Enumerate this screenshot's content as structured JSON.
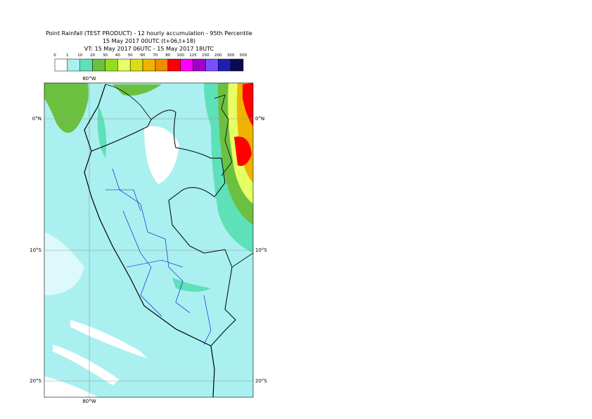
{
  "header": {
    "lines": [
      "Point Rainfall (TEST PRODUCT) - 12 hourly accumulation - 95th Percentile",
      "15 May 2017 00UTC (t+06,t+18)",
      "VT: 15 May 2017 06UTC - 15 May 2017 18UTC"
    ]
  },
  "colorbar": {
    "labels": [
      0,
      1,
      10,
      20,
      30,
      40,
      50,
      60,
      70,
      80,
      100,
      125,
      150,
      200,
      300,
      500
    ],
    "colors": [
      "#ffffff",
      "#aaf0f0",
      "#5ee0b8",
      "#6cc040",
      "#96dc1e",
      "#e6ff64",
      "#dcdc14",
      "#f0b400",
      "#f08c00",
      "#ff0000",
      "#ff00ff",
      "#a000c8",
      "#7850ff",
      "#1e1eb4",
      "#0a0a50"
    ]
  },
  "map": {
    "lon_labels": [
      "80°W"
    ],
    "lat_labels": [
      "0°N",
      "10°S",
      "20°S"
    ]
  }
}
